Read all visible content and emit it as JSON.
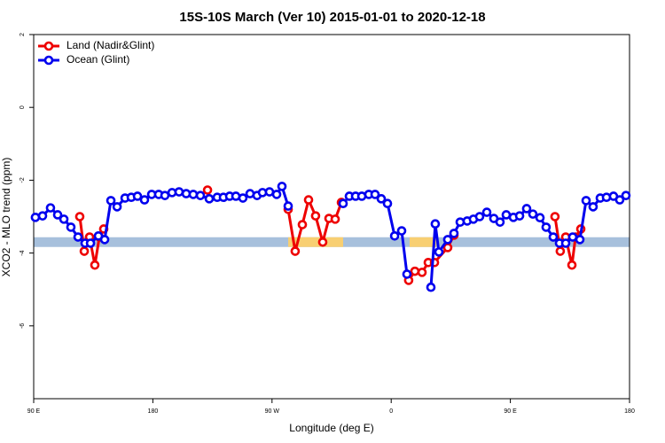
{
  "chart_data": {
    "type": "line",
    "title": "15S-10S March (Ver 10)   2015-01-01 to 2020-12-18",
    "x_label": "Longitude (deg E)",
    "y_label": "XCO2 - MLO trend (ppm)",
    "xlim": [
      90,
      540
    ],
    "xticks": [
      {
        "value": 90,
        "label": "90 E"
      },
      {
        "value": 180,
        "label": "180"
      },
      {
        "value": 270,
        "label": "90 W"
      },
      {
        "value": 360,
        "label": "0"
      },
      {
        "value": 450,
        "label": "90 E"
      },
      {
        "value": 540,
        "label": "180"
      }
    ],
    "ylim": [
      -8,
      2
    ],
    "yticks": [
      2,
      0,
      -2,
      -4,
      -6
    ],
    "legend": "top-left",
    "surface_band": {
      "level": -3.7,
      "ocean_color": "#a7c0dc",
      "land_color": "#f8cf72",
      "land_ranges": [
        [
          282.2,
          323.7
        ],
        [
          373.9,
          394.0
        ]
      ]
    },
    "series": [
      {
        "name": "Land (Nadir&Glint)",
        "color": "#ee0000",
        "x": [
          124.8,
          128.2,
          132.2,
          136.2,
          139.6,
          142.9,
          null,
          221.3,
          null,
          282.2,
          287.5,
          292.9,
          297.6,
          302.9,
          308.3,
          313.0,
          317.7,
          322.4,
          null,
          373.2,
          377.9,
          383.3,
          388.0,
          392.7,
          402.7,
          407.4,
          null,
          483.7,
          487.7,
          491.8,
          496.5,
          499.2,
          503.2
        ],
        "values": [
          -3.0,
          -3.95,
          -3.56,
          -4.33,
          -3.56,
          -3.34,
          null,
          -2.27,
          null,
          -2.8,
          -3.95,
          -3.22,
          -2.54,
          -2.98,
          -3.7,
          -3.05,
          -3.07,
          -2.61,
          null,
          -4.75,
          -4.5,
          -4.53,
          -4.26,
          -4.26,
          -3.85,
          -3.51,
          null,
          -3.0,
          -3.95,
          -3.56,
          -4.33,
          -3.56,
          -3.34
        ]
      },
      {
        "name": "Ocean (Glint)",
        "color": "#0000ee",
        "x": [
          91.3,
          96.7,
          102.7,
          108.1,
          112.8,
          118.1,
          123.5,
          128.8,
          132.9,
          138.9,
          143.6,
          148.3,
          153.0,
          159.0,
          163.7,
          168.4,
          173.7,
          179.1,
          184.4,
          189.1,
          194.5,
          199.8,
          205.2,
          210.5,
          215.9,
          222.6,
          228.6,
          233.3,
          238.0,
          242.7,
          248.0,
          253.4,
          258.7,
          262.8,
          268.1,
          273.5,
          277.5,
          282.2,
          null,
          323.7,
          328.4,
          333.1,
          337.8,
          343.1,
          347.8,
          352.5,
          357.2,
          362.6,
          367.9,
          371.9,
          null,
          390.0,
          393.3,
          396.0,
          402.7,
          407.4,
          412.1,
          417.4,
          422.1,
          426.8,
          432.2,
          437.5,
          442.2,
          446.9,
          452.3,
          457.0,
          462.3,
          467.0,
          472.4,
          477.0,
          482.4,
          487.1,
          491.8,
          497.1,
          502.5,
          507.2,
          512.5,
          517.9,
          522.6,
          527.9,
          532.6,
          537.3
        ],
        "values": [
          -3.02,
          -2.98,
          -2.76,
          -2.95,
          -3.07,
          -3.29,
          -3.56,
          -3.73,
          -3.73,
          -3.53,
          -3.63,
          -2.56,
          -2.73,
          -2.49,
          -2.47,
          -2.44,
          -2.54,
          -2.39,
          -2.39,
          -2.42,
          -2.34,
          -2.32,
          -2.37,
          -2.39,
          -2.42,
          -2.51,
          -2.47,
          -2.47,
          -2.44,
          -2.44,
          -2.49,
          -2.37,
          -2.42,
          -2.34,
          -2.32,
          -2.39,
          -2.17,
          -2.71,
          null,
          -2.64,
          -2.44,
          -2.44,
          -2.44,
          -2.39,
          -2.39,
          -2.51,
          -2.64,
          -3.53,
          -3.39,
          -4.58,
          null,
          -4.94,
          -3.2,
          -3.97,
          -3.63,
          -3.46,
          -3.15,
          -3.12,
          -3.07,
          -3.0,
          -2.88,
          -3.05,
          -3.15,
          -2.95,
          -3.02,
          -2.98,
          -2.78,
          -2.93,
          -3.03,
          -3.29,
          -3.56,
          -3.73,
          -3.73,
          -3.56,
          -3.63,
          -2.56,
          -2.73,
          -2.49,
          -2.47,
          -2.44,
          -2.54,
          -2.42
        ]
      }
    ]
  }
}
